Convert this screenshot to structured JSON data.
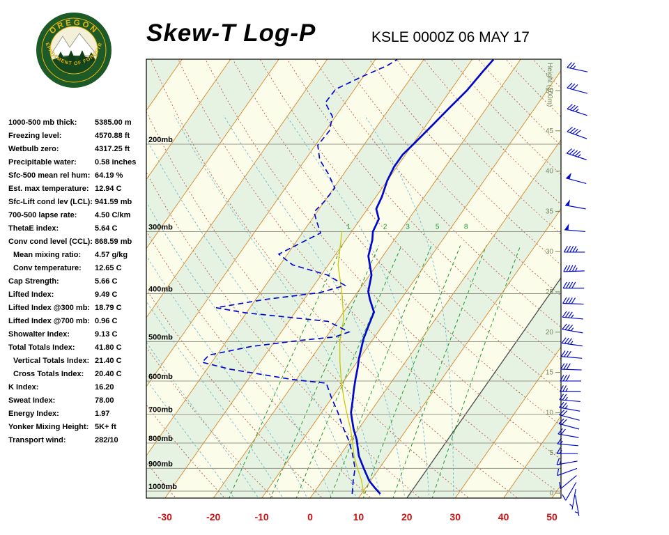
{
  "header": {
    "title": "Skew-T Log-P",
    "station": "KSLE 0000Z 06 MAY 17",
    "logo": {
      "arc_top": "OREGON",
      "arc_bottom": "DEPARTMENT OF FORESTRY"
    }
  },
  "indices": [
    {
      "label": "1000-500 mb thick:",
      "value": "5385.00 m"
    },
    {
      "label": "Freezing level:",
      "value": "4570.88 ft"
    },
    {
      "label": "Wetbulb zero:",
      "value": "4317.25 ft"
    },
    {
      "label": "Precipitable water:",
      "value": "0.58 inches"
    },
    {
      "label": "Sfc-500 mean rel hum:",
      "value": "64.19 %"
    },
    {
      "label": "Est. max temperature:",
      "value": "12.94 C"
    },
    {
      "label": "Sfc-Lift cond lev (LCL):",
      "value": "941.59 mb"
    },
    {
      "label": "700-500 lapse rate:",
      "value": "4.50 C/km"
    },
    {
      "label": "ThetaE index:",
      "value": "5.64 C"
    },
    {
      "label": "Conv cond level (CCL):",
      "value": "868.59 mb"
    },
    {
      "label": "Mean mixing ratio:",
      "value": "4.57 g/kg",
      "indent": true
    },
    {
      "label": "Conv temperature:",
      "value": "12.65 C",
      "indent": true
    },
    {
      "label": "Cap Strength:",
      "value": "5.66 C"
    },
    {
      "label": "Lifted Index:",
      "value": "9.49 C"
    },
    {
      "label": "Lifted Index @300 mb:",
      "value": "18.79 C"
    },
    {
      "label": "Lifted Index @700 mb:",
      "value": "0.96 C"
    },
    {
      "label": "Showalter Index:",
      "value": "9.13 C"
    },
    {
      "label": "Total Totals Index:",
      "value": "41.80 C"
    },
    {
      "label": "Vertical Totals Index:",
      "value": "21.40 C",
      "indent": true
    },
    {
      "label": "Cross Totals Index:",
      "value": "20.40 C",
      "indent": true
    },
    {
      "label": "K Index:",
      "value": "16.20"
    },
    {
      "label": "Sweat Index:",
      "value": "78.00"
    },
    {
      "label": "Energy Index:",
      "value": "1.97"
    },
    {
      "label": "Yonker Mixing Height:",
      "value": "5K+ ft"
    },
    {
      "label": "Transport wind:",
      "value": "282/10"
    }
  ],
  "chart_data": {
    "type": "skewt",
    "title": "Skew-T Log-P",
    "station_line": "KSLE 0000Z 06 MAY 17",
    "x_axis": {
      "unit": "C",
      "ticks": [
        -30,
        -20,
        -10,
        0,
        10,
        20,
        30,
        40,
        50
      ]
    },
    "pressure_lines_mb": [
      200,
      300,
      400,
      500,
      600,
      700,
      800,
      900,
      1000
    ],
    "pressure_axis_unit": "mb",
    "height_axis": {
      "label": "Height (100m)",
      "ticks": [
        0,
        5,
        10,
        15,
        20,
        25,
        30,
        35,
        40,
        45,
        50
      ]
    },
    "mixing_ratio_lines_gkg": [
      1,
      2,
      3,
      5,
      8,
      12,
      20
    ],
    "mixing_ratio_labels_gkg": [
      1,
      2,
      3,
      5,
      8
    ],
    "isotherm_step_c": 10,
    "sounding": {
      "temperature": [
        [
          1013,
          13.9
        ],
        [
          985,
          11.9
        ],
        [
          953,
          9.7
        ],
        [
          900,
          6.8
        ],
        [
          850,
          4.0
        ],
        [
          810,
          2.2
        ],
        [
          790,
          1.3
        ],
        [
          750,
          -1.0
        ],
        [
          712,
          -3.0
        ],
        [
          695,
          -3.9
        ],
        [
          660,
          -5.2
        ],
        [
          626,
          -6.6
        ],
        [
          596,
          -7.8
        ],
        [
          565,
          -9.0
        ],
        [
          541,
          -10.1
        ],
        [
          494,
          -12.0
        ],
        [
          460,
          -13.0
        ],
        [
          436,
          -13.7
        ],
        [
          411,
          -16.4
        ],
        [
          396,
          -17.9
        ],
        [
          367,
          -19.6
        ],
        [
          336,
          -23.0
        ],
        [
          312,
          -24.5
        ],
        [
          300,
          -25.6
        ],
        [
          283,
          -26.2
        ],
        [
          270,
          -28.2
        ],
        [
          255,
          -28.8
        ],
        [
          237,
          -30.0
        ],
        [
          222,
          -30.6
        ],
        [
          210,
          -30.6
        ],
        [
          199,
          -29.8
        ],
        [
          183,
          -28.7
        ],
        [
          169,
          -27.7
        ],
        [
          156,
          -26.6
        ],
        [
          142,
          -26.0
        ],
        [
          135,
          -25.6
        ]
      ],
      "dewpoint": [
        [
          1013,
          8.1
        ],
        [
          953,
          6.4
        ],
        [
          900,
          5.0
        ],
        [
          836,
          2.1
        ],
        [
          790,
          -0.4
        ],
        [
          734,
          -4.1
        ],
        [
          695,
          -6.6
        ],
        [
          646,
          -10.3
        ],
        [
          606,
          -13.3
        ],
        [
          596,
          -20.7
        ],
        [
          568,
          -35.2
        ],
        [
          550,
          -42.0
        ],
        [
          532,
          -41.6
        ],
        [
          511,
          -34.1
        ],
        [
          497,
          -24.9
        ],
        [
          489,
          -18.2
        ],
        [
          478,
          -16.0
        ],
        [
          455,
          -21.9
        ],
        [
          437,
          -40.4
        ],
        [
          427,
          -47.0
        ],
        [
          411,
          -38.1
        ],
        [
          398,
          -27.6
        ],
        [
          385,
          -23.6
        ],
        [
          367,
          -28.7
        ],
        [
          350,
          -37.4
        ],
        [
          333,
          -41.8
        ],
        [
          317,
          -39.0
        ],
        [
          302,
          -36.2
        ],
        [
          288,
          -38.4
        ],
        [
          274,
          -40.6
        ],
        [
          261,
          -40.0
        ],
        [
          245,
          -39.8
        ],
        [
          229,
          -43.3
        ],
        [
          215,
          -47.0
        ],
        [
          201,
          -49.5
        ],
        [
          188,
          -49.2
        ],
        [
          176,
          -50.6
        ],
        [
          165,
          -54.1
        ],
        [
          155,
          -53.9
        ],
        [
          146,
          -50.2
        ],
        [
          139,
          -46.7
        ],
        [
          135,
          -45.5
        ]
      ],
      "wetbulb": [
        [
          1013,
          10.5
        ],
        [
          950,
          8.0
        ],
        [
          900,
          5.5
        ],
        [
          850,
          3.0
        ],
        [
          800,
          0.8
        ],
        [
          750,
          -1.6
        ],
        [
          700,
          -4.5
        ],
        [
          650,
          -7.5
        ],
        [
          600,
          -10.5
        ],
        [
          550,
          -13.5
        ],
        [
          500,
          -16.5
        ],
        [
          450,
          -19.0
        ],
        [
          400,
          -23.0
        ],
        [
          350,
          -28.0
        ],
        [
          300,
          -32.0
        ]
      ]
    },
    "winds": [
      [
        1020,
        170,
        5
      ],
      [
        990,
        190,
        5
      ],
      [
        960,
        210,
        10
      ],
      [
        930,
        230,
        10
      ],
      [
        900,
        250,
        10
      ],
      [
        870,
        260,
        15
      ],
      [
        840,
        270,
        15
      ],
      [
        810,
        275,
        15
      ],
      [
        780,
        280,
        20
      ],
      [
        750,
        285,
        20
      ],
      [
        720,
        285,
        20
      ],
      [
        690,
        280,
        25
      ],
      [
        660,
        275,
        25
      ],
      [
        630,
        270,
        25
      ],
      [
        600,
        270,
        30
      ],
      [
        570,
        272,
        30
      ],
      [
        540,
        275,
        30
      ],
      [
        510,
        278,
        35
      ],
      [
        480,
        280,
        35
      ],
      [
        450,
        275,
        35
      ],
      [
        420,
        272,
        40
      ],
      [
        390,
        270,
        40
      ],
      [
        360,
        268,
        45
      ],
      [
        330,
        270,
        45
      ],
      [
        300,
        275,
        50
      ],
      [
        270,
        280,
        50
      ],
      [
        240,
        285,
        50
      ],
      [
        215,
        288,
        45
      ],
      [
        195,
        290,
        40
      ],
      [
        175,
        288,
        35
      ],
      [
        158,
        285,
        30
      ],
      [
        143,
        282,
        25
      ]
    ],
    "colors": {
      "profile_blue": "#0008cc",
      "isotherm_orange": "#d4882a",
      "dry_adiabat_red": "#c05a4a",
      "mixing_green": "#1f9c2e",
      "moist_teal": "#6cb9c9",
      "axis_red": "#cc1111",
      "band_green": "#e6f2e2",
      "band_cream": "#fcfceb",
      "wetbulb_yellow": "#c9c900",
      "pressure_line_gray": "#97978a",
      "dark_isotherm": "#4a4a4a"
    }
  }
}
